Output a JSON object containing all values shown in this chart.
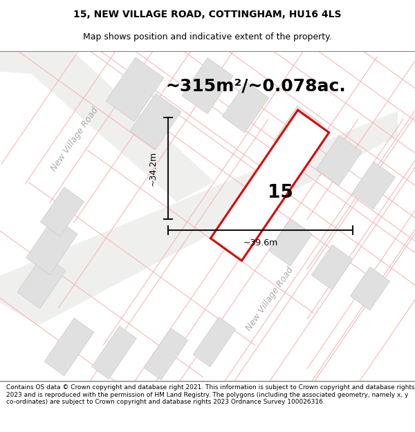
{
  "title_line1": "15, NEW VILLAGE ROAD, COTTINGHAM, HU16 4LS",
  "title_line2": "Map shows position and indicative extent of the property.",
  "area_text": "~315m²/~0.078ac.",
  "property_number": "15",
  "dim_width": "~39.6m",
  "dim_height": "~34.2m",
  "footer_text": "Contains OS data © Crown copyright and database right 2021. This information is subject to Crown copyright and database rights 2023 and is reproduced with the permission of HM Land Registry. The polygons (including the associated geometry, namely x, y co-ordinates) are subject to Crown copyright and database rights 2023 Ordnance Survey 100026316.",
  "map_bg": "#ffffff",
  "plot_outline_color": "#f5b8b8",
  "highlight_color": "#dd0000",
  "road_fill": "#eeeeee",
  "road_label_color": "#aaaaaa",
  "building_fill": "#e0e0e0",
  "building_edge": "#cccccc",
  "dim_line_color": "#111111",
  "area_fontsize": 18,
  "num_fontsize": 22,
  "road_label_upper": "New Village Road",
  "road_label_lower": "New Village Road",
  "title_fontsize": 10,
  "subtitle_fontsize": 9,
  "footer_fontsize": 6.5
}
